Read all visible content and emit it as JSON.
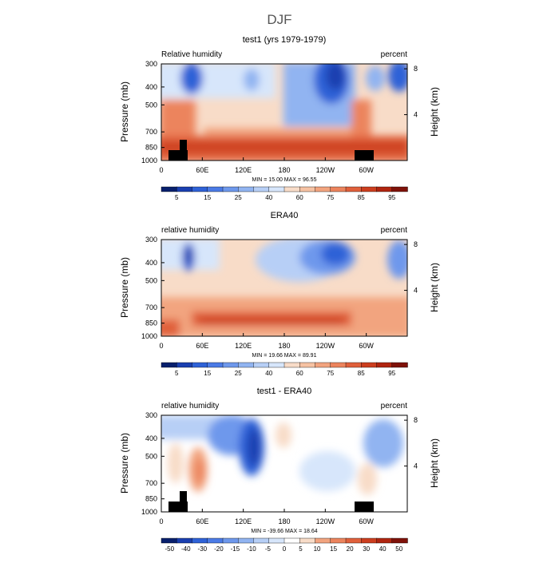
{
  "title": "DJF",
  "chart_data": [
    {
      "type": "heatmap",
      "title": "test1 (yrs 1979-1979)",
      "left_label": "Relative humidity",
      "right_label": "percent",
      "xlabel": "",
      "ylabel": "Pressure (mb)",
      "y2label": "Height (km)",
      "x_ticks": [
        "0",
        "60E",
        "120E",
        "180",
        "120W",
        "60W"
      ],
      "y_ticks": [
        "300",
        "400",
        "500",
        "700",
        "850",
        "1000"
      ],
      "y2_ticks": [
        "8",
        "4"
      ],
      "stats": "MIN =   15.00   MAX =   96.55",
      "colorbar_labels": [
        "5",
        "15",
        "25",
        "40",
        "60",
        "75",
        "85",
        "95"
      ],
      "colorbar_colors": [
        "#08206d",
        "#1a3fb0",
        "#2f62d7",
        "#4b7be6",
        "#6e98ec",
        "#91b4f1",
        "#b7cff6",
        "#d7e6fb",
        "#f8dcc8",
        "#f6c2a3",
        "#f2a47f",
        "#ec845d",
        "#e0603b",
        "#cc3e1f",
        "#b02510",
        "#7f1209"
      ],
      "min": 15.0,
      "max": 96.55
    },
    {
      "type": "heatmap",
      "title": "ERA40",
      "left_label": "relative humidity",
      "right_label": "percent",
      "xlabel": "",
      "ylabel": "Pressure (mb)",
      "y2label": "Height (km)",
      "x_ticks": [
        "0",
        "60E",
        "120E",
        "180",
        "120W",
        "60W"
      ],
      "y_ticks": [
        "300",
        "400",
        "500",
        "700",
        "850",
        "1000"
      ],
      "y2_ticks": [
        "8",
        "4"
      ],
      "stats": "MIN =   19.66   MAX =   89.91",
      "colorbar_labels": [
        "5",
        "15",
        "25",
        "40",
        "60",
        "75",
        "85",
        "95"
      ],
      "colorbar_colors": [
        "#08206d",
        "#1a3fb0",
        "#2f62d7",
        "#4b7be6",
        "#6e98ec",
        "#91b4f1",
        "#b7cff6",
        "#d7e6fb",
        "#f8dcc8",
        "#f6c2a3",
        "#f2a47f",
        "#ec845d",
        "#e0603b",
        "#cc3e1f",
        "#b02510",
        "#7f1209"
      ],
      "min": 19.66,
      "max": 89.91
    },
    {
      "type": "heatmap",
      "title": "test1 - ERA40",
      "left_label": "relative humidity",
      "right_label": "percent",
      "xlabel": "",
      "ylabel": "Pressure (mb)",
      "y2label": "Height (km)",
      "x_ticks": [
        "0",
        "60E",
        "120E",
        "180",
        "120W",
        "60W"
      ],
      "y_ticks": [
        "300",
        "400",
        "500",
        "700",
        "850",
        "1000"
      ],
      "y2_ticks": [
        "8",
        "4"
      ],
      "stats": "MIN =  -39.66   MAX =   18.64",
      "colorbar_labels": [
        "-50",
        "-40",
        "-30",
        "-20",
        "-15",
        "-10",
        "-5",
        "0",
        "5",
        "10",
        "15",
        "20",
        "30",
        "40",
        "50"
      ],
      "colorbar_colors": [
        "#08206d",
        "#1a3fb0",
        "#2f62d7",
        "#4b7be6",
        "#6e98ec",
        "#91b4f1",
        "#b7cff6",
        "#d7e6fb",
        "#ffffff",
        "#f8dcc8",
        "#f2a47f",
        "#ec845d",
        "#e0603b",
        "#cc3e1f",
        "#b02510",
        "#7f1209"
      ],
      "min": -39.66,
      "max": 18.64
    }
  ]
}
